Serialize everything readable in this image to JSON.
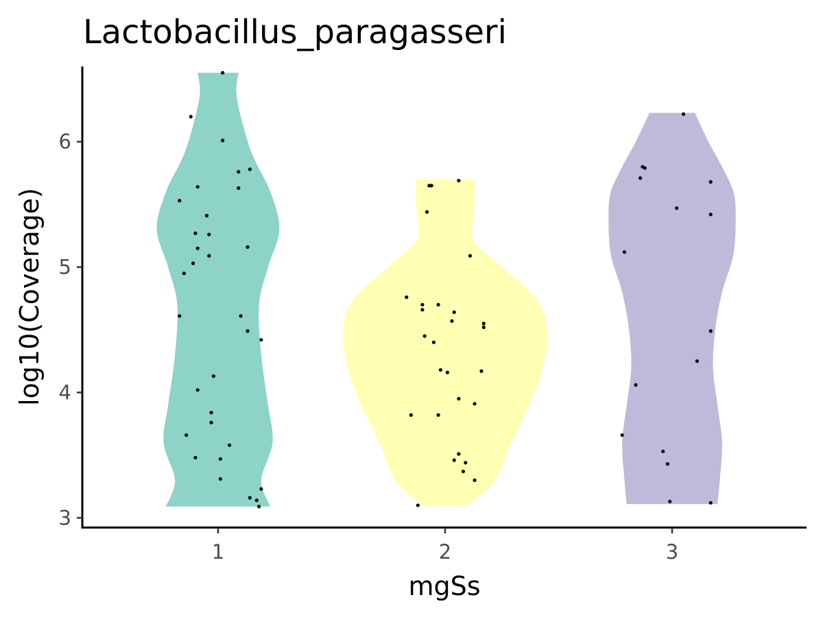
{
  "chart_data": {
    "type": "violin",
    "title": "Lactobacillus_paragasseri",
    "xlabel": "mgSs",
    "ylabel": "log10(Coverage)",
    "categories": [
      "1",
      "2",
      "3"
    ],
    "ylim": [
      2.92,
      6.6
    ],
    "yticks": [
      3,
      4,
      5,
      6
    ],
    "grid": false,
    "legend": "none",
    "colors": [
      "#8dd3c7",
      "#ffffb3",
      "#bebada"
    ],
    "groups": [
      {
        "name": "1",
        "color": "#8dd3c7",
        "density": [
          [
            3.09,
            0.23
          ],
          [
            3.3,
            0.19
          ],
          [
            3.6,
            0.24
          ],
          [
            3.9,
            0.22
          ],
          [
            4.3,
            0.19
          ],
          [
            4.7,
            0.18
          ],
          [
            5.0,
            0.22
          ],
          [
            5.3,
            0.27
          ],
          [
            5.6,
            0.23
          ],
          [
            5.9,
            0.15
          ],
          [
            6.2,
            0.1
          ],
          [
            6.4,
            0.08
          ],
          [
            6.55,
            0.09
          ]
        ],
        "points": [
          [
            -0.17,
            5.53
          ],
          [
            -0.12,
            6.2
          ],
          [
            0.02,
            6.55
          ],
          [
            0.02,
            6.01
          ],
          [
            0.09,
            5.76
          ],
          [
            0.14,
            5.78
          ],
          [
            -0.09,
            5.64
          ],
          [
            0.09,
            5.63
          ],
          [
            -0.05,
            5.41
          ],
          [
            -0.1,
            5.27
          ],
          [
            -0.04,
            5.26
          ],
          [
            -0.09,
            5.15
          ],
          [
            0.13,
            5.16
          ],
          [
            -0.04,
            5.09
          ],
          [
            -0.11,
            5.03
          ],
          [
            -0.15,
            4.95
          ],
          [
            -0.17,
            4.61
          ],
          [
            0.1,
            4.61
          ],
          [
            0.13,
            4.49
          ],
          [
            0.19,
            4.42
          ],
          [
            -0.02,
            4.13
          ],
          [
            -0.09,
            4.02
          ],
          [
            -0.03,
            3.84
          ],
          [
            -0.03,
            3.76
          ],
          [
            -0.14,
            3.66
          ],
          [
            0.05,
            3.58
          ],
          [
            -0.1,
            3.48
          ],
          [
            0.01,
            3.47
          ],
          [
            0.01,
            3.31
          ],
          [
            0.14,
            3.16
          ],
          [
            0.19,
            3.23
          ],
          [
            0.17,
            3.14
          ],
          [
            0.18,
            3.09
          ]
        ]
      },
      {
        "name": "2",
        "color": "#ffffb3",
        "density": [
          [
            3.1,
            0.1
          ],
          [
            3.3,
            0.22
          ],
          [
            3.6,
            0.29
          ],
          [
            3.9,
            0.37
          ],
          [
            4.2,
            0.43
          ],
          [
            4.5,
            0.45
          ],
          [
            4.75,
            0.4
          ],
          [
            5.0,
            0.25
          ],
          [
            5.2,
            0.13
          ],
          [
            5.35,
            0.12
          ],
          [
            5.5,
            0.13
          ],
          [
            5.6,
            0.13
          ],
          [
            5.7,
            0.13
          ]
        ],
        "points": [
          [
            -0.06,
            5.65
          ],
          [
            -0.08,
            5.44
          ],
          [
            -0.07,
            5.65
          ],
          [
            0.06,
            5.69
          ],
          [
            0.11,
            5.09
          ],
          [
            -0.17,
            4.76
          ],
          [
            -0.1,
            4.7
          ],
          [
            -0.03,
            4.7
          ],
          [
            -0.1,
            4.66
          ],
          [
            0.04,
            4.64
          ],
          [
            0.17,
            4.55
          ],
          [
            0.17,
            4.52
          ],
          [
            0.03,
            4.57
          ],
          [
            -0.09,
            4.45
          ],
          [
            -0.05,
            4.4
          ],
          [
            -0.02,
            4.18
          ],
          [
            0.01,
            4.16
          ],
          [
            0.16,
            4.17
          ],
          [
            0.06,
            3.95
          ],
          [
            0.13,
            3.91
          ],
          [
            -0.15,
            3.82
          ],
          [
            -0.03,
            3.82
          ],
          [
            0.06,
            3.51
          ],
          [
            0.04,
            3.46
          ],
          [
            0.09,
            3.44
          ],
          [
            0.08,
            3.37
          ],
          [
            0.13,
            3.3
          ],
          [
            -0.12,
            3.1
          ]
        ]
      },
      {
        "name": "3",
        "color": "#bebada",
        "density": [
          [
            3.11,
            0.2
          ],
          [
            3.3,
            0.21
          ],
          [
            3.6,
            0.22
          ],
          [
            3.9,
            0.2
          ],
          [
            4.2,
            0.18
          ],
          [
            4.5,
            0.19
          ],
          [
            4.8,
            0.22
          ],
          [
            5.1,
            0.27
          ],
          [
            5.4,
            0.28
          ],
          [
            5.6,
            0.27
          ],
          [
            5.8,
            0.22
          ],
          [
            6.0,
            0.16
          ],
          [
            6.23,
            0.1
          ]
        ],
        "points": [
          [
            0.05,
            6.22
          ],
          [
            -0.13,
            5.8
          ],
          [
            -0.12,
            5.79
          ],
          [
            -0.14,
            5.71
          ],
          [
            0.17,
            5.68
          ],
          [
            0.02,
            5.47
          ],
          [
            0.17,
            5.42
          ],
          [
            -0.21,
            5.12
          ],
          [
            0.17,
            4.49
          ],
          [
            0.11,
            4.25
          ],
          [
            -0.16,
            4.06
          ],
          [
            -0.22,
            3.66
          ],
          [
            -0.04,
            3.53
          ],
          [
            -0.02,
            3.43
          ],
          [
            -0.01,
            3.13
          ],
          [
            0.17,
            3.12
          ]
        ]
      }
    ]
  }
}
